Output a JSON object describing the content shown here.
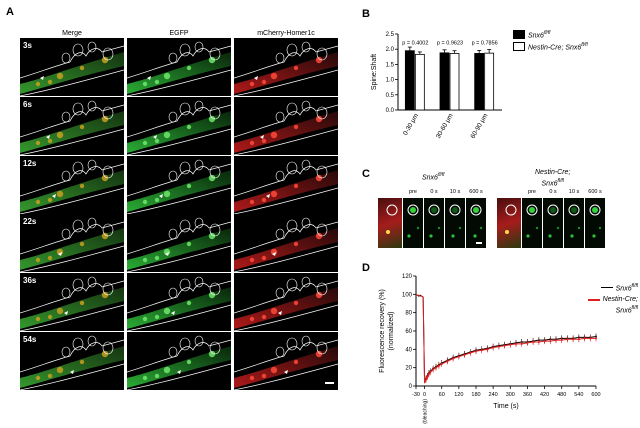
{
  "panel_a": {
    "label": "A",
    "columns": [
      "Merge",
      "EGFP",
      "mCherry-Homer1c"
    ],
    "time_labels": [
      "3s",
      "6s",
      "12s",
      "22s",
      "36s",
      "54s"
    ],
    "colors": {
      "merge": "#b89a1e",
      "egfp": "#2fbf3a",
      "mcherry": "#d22222"
    }
  },
  "panel_b": {
    "label": "B",
    "chart_data": {
      "type": "bar",
      "categories": [
        "0-30 μm",
        "30-60 μm",
        "60-90 μm"
      ],
      "series": [
        {
          "name": "Snx6fl/fl",
          "values": [
            1.95,
            1.88,
            1.86
          ],
          "errors": [
            0.12,
            0.1,
            0.1
          ],
          "color": "#000000"
        },
        {
          "name": "Nestin-Cre; Snx6fl/fl",
          "values": [
            1.83,
            1.86,
            1.87
          ],
          "errors": [
            0.08,
            0.09,
            0.12
          ],
          "color": "#ffffff"
        }
      ],
      "pvalues": [
        "p = 0.4002",
        "p = 0.9623",
        "p = 0.7856"
      ],
      "ylabel": "Spine:Shaft",
      "ylim": [
        0,
        2.5
      ],
      "yticks": [
        "0.0",
        "0.5",
        "1.0",
        "1.5",
        "2.0",
        "2.5"
      ],
      "legend_position": "right"
    },
    "legend": {
      "wt_gene": "Snx6",
      "wt_sup": "fl/fl",
      "ko_prefix": "Nestin-Cre; Snx6",
      "ko_sup": "fl/fl"
    }
  },
  "panel_c": {
    "label": "C",
    "group1": {
      "gene": "Snx6",
      "sup": "fl/fl"
    },
    "group2": {
      "line1": "Nestin-Cre;",
      "gene": "Snx6",
      "sup": "fl/fl"
    },
    "timepoints": [
      "pre",
      "0 s",
      "10 s",
      "600 s"
    ]
  },
  "panel_d": {
    "label": "D",
    "chart_data": {
      "type": "line",
      "xlabel": "Time (s)",
      "ylabel": "Fluorescence recovery (%)",
      "ylabel2": "(normalized)",
      "xlim": [
        -30,
        600
      ],
      "ylim": [
        0,
        120
      ],
      "xticks": [
        "-30",
        "0",
        "60",
        "120",
        "180",
        "240",
        "300",
        "360",
        "420",
        "480",
        "540",
        "600"
      ],
      "yticks": [
        "0",
        "20",
        "40",
        "60",
        "80",
        "100",
        "120"
      ],
      "bleach_label": "(bleaching)",
      "series": [
        {
          "name": "Snx6fl/fl",
          "color": "#000000",
          "x": [
            -30,
            -25,
            -20,
            -15,
            -10,
            -5,
            0,
            5,
            10,
            15,
            20,
            30,
            40,
            50,
            60,
            80,
            100,
            120,
            140,
            160,
            180,
            200,
            220,
            240,
            260,
            280,
            300,
            320,
            340,
            360,
            380,
            400,
            420,
            440,
            460,
            480,
            500,
            520,
            540,
            560,
            580,
            600
          ],
          "y": [
            100,
            99,
            98,
            99,
            98,
            97,
            4,
            8,
            11,
            14,
            16,
            19,
            21,
            23,
            25,
            28,
            31,
            33,
            35,
            37,
            39,
            40,
            41,
            43,
            44,
            45,
            46,
            47,
            48,
            48,
            49,
            50,
            50,
            51,
            51,
            52,
            52,
            52,
            53,
            53,
            53,
            54
          ]
        },
        {
          "name": "Nestin-Cre; Snx6fl/fl",
          "color": "#e02020",
          "x": [
            -30,
            -25,
            -20,
            -15,
            -10,
            -5,
            0,
            5,
            10,
            15,
            20,
            30,
            40,
            50,
            60,
            80,
            100,
            120,
            140,
            160,
            180,
            200,
            220,
            240,
            260,
            280,
            300,
            320,
            340,
            360,
            380,
            400,
            420,
            440,
            460,
            480,
            500,
            520,
            540,
            560,
            580,
            600
          ],
          "y": [
            100,
            99,
            99,
            98,
            98,
            97,
            3,
            7,
            10,
            13,
            15,
            18,
            20,
            22,
            24,
            27,
            30,
            32,
            34,
            36,
            38,
            39,
            40,
            42,
            43,
            44,
            45,
            46,
            46,
            47,
            48,
            48,
            49,
            49,
            50,
            50,
            51,
            51,
            51,
            52,
            52,
            52
          ]
        }
      ]
    },
    "legend": {
      "wt_gene": "Snx6",
      "wt_sup": "fl/fl",
      "ko_line1": "Nestin-Cre;",
      "ko_gene": "Snx6",
      "ko_sup": "fl/fl"
    }
  }
}
